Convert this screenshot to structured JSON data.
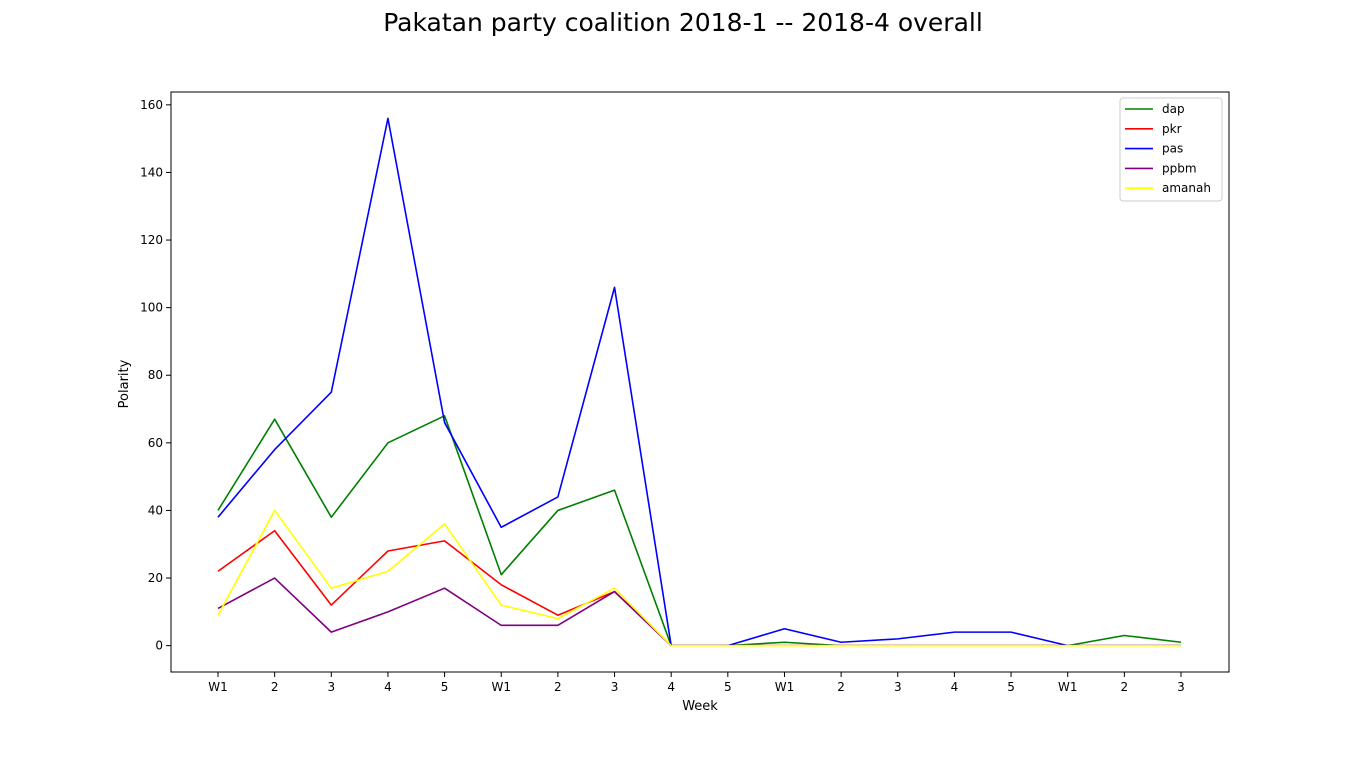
{
  "chart_data": {
    "type": "line",
    "title": "Pakatan party coalition 2018-1 -- 2018-4 overall",
    "xlabel": "Week",
    "ylabel": "Polarity",
    "categories": [
      "W1",
      "2",
      "3",
      "4",
      "5",
      "W1",
      "2",
      "3",
      "4",
      "5",
      "W1",
      "2",
      "3",
      "4",
      "5",
      "W1",
      "2",
      "3"
    ],
    "ylim": [
      -7.8,
      163.8
    ],
    "yticks": [
      0,
      20,
      40,
      60,
      80,
      100,
      120,
      140,
      160
    ],
    "grid": false,
    "legend_position": "top-right",
    "series": [
      {
        "name": "dap",
        "color": "#008000",
        "values": [
          40,
          67,
          38,
          60,
          68,
          21,
          40,
          46,
          0,
          0,
          1,
          0,
          0,
          0,
          0,
          0,
          3,
          1
        ]
      },
      {
        "name": "pkr",
        "color": "#ff0000",
        "values": [
          22,
          34,
          12,
          28,
          31,
          18,
          9,
          16,
          0,
          0,
          0,
          0,
          0,
          0,
          0,
          0,
          0,
          0
        ]
      },
      {
        "name": "pas",
        "color": "#0000ff",
        "values": [
          38,
          58,
          75,
          156,
          66,
          35,
          44,
          106,
          0,
          0,
          5,
          1,
          2,
          4,
          4,
          0,
          0,
          0
        ]
      },
      {
        "name": "ppbm",
        "color": "#800080",
        "values": [
          11,
          20,
          4,
          10,
          17,
          6,
          6,
          16,
          0,
          0,
          0,
          0,
          0,
          0,
          0,
          0,
          0,
          0
        ]
      },
      {
        "name": "amanah",
        "color": "#ffff00",
        "values": [
          9,
          40,
          17,
          22,
          36,
          12,
          8,
          17,
          0,
          0,
          0,
          0,
          0,
          0,
          0,
          0,
          0,
          0
        ]
      }
    ]
  }
}
